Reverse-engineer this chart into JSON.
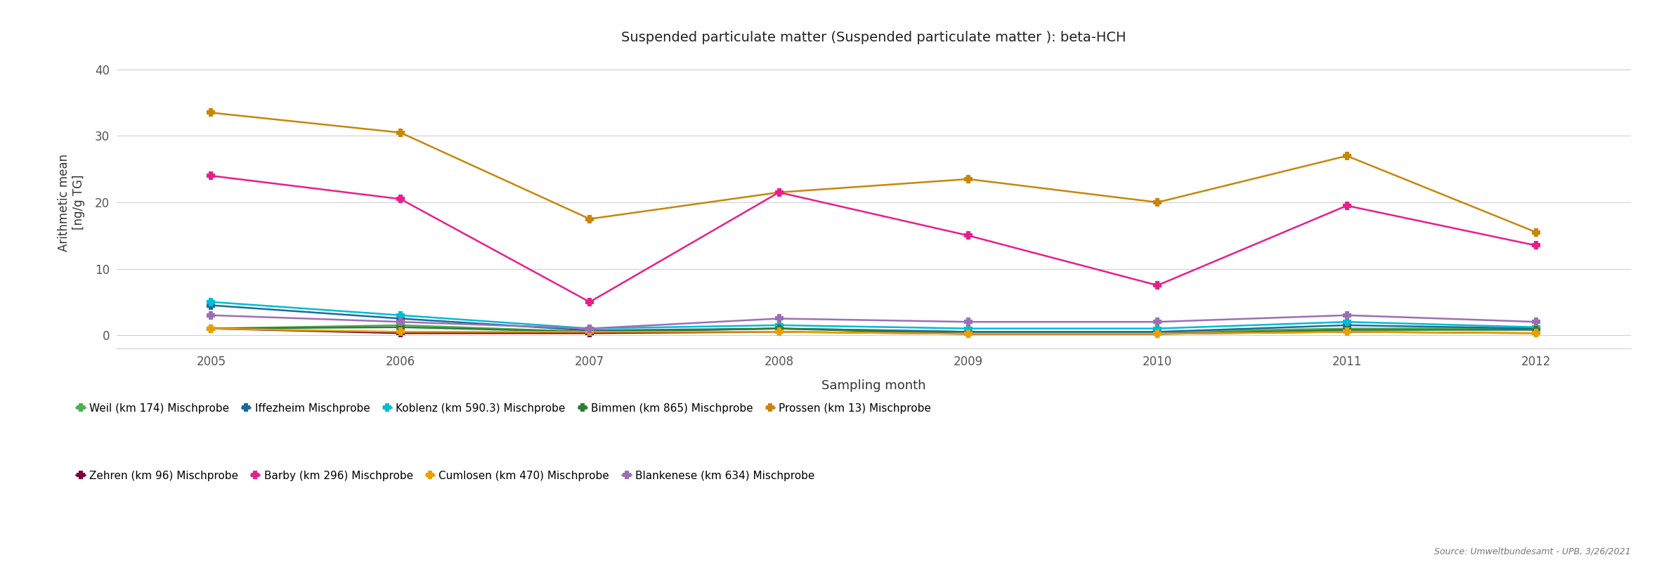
{
  "title": "Suspended particulate matter (Suspended particulate matter ): beta-HCH",
  "xlabel": "Sampling month",
  "ylabel": "Arithmetic mean\n[ng/g TG]",
  "years": [
    2005,
    2006,
    2007,
    2008,
    2009,
    2010,
    2011,
    2012
  ],
  "series": [
    {
      "label": "Weil (km 174) Mischprobe",
      "color": "#4caf50",
      "marker": "P",
      "markersize": 7,
      "data": [
        1.0,
        1.5,
        0.5,
        1.0,
        0.5,
        0.5,
        1.0,
        1.0
      ]
    },
    {
      "label": "Iffezheim Mischprobe",
      "color": "#1a6b9e",
      "marker": "P",
      "markersize": 7,
      "data": [
        4.5,
        2.5,
        0.7,
        1.0,
        0.5,
        0.5,
        1.5,
        1.0
      ]
    },
    {
      "label": "Koblenz (km 590.3) Mischprobe",
      "color": "#00bcd4",
      "marker": "P",
      "markersize": 7,
      "data": [
        5.0,
        3.0,
        1.0,
        1.5,
        1.0,
        1.0,
        2.0,
        1.2
      ]
    },
    {
      "label": "Bimmen (km 865) Mischprobe",
      "color": "#2e7d32",
      "marker": "P",
      "markersize": 7,
      "data": [
        1.0,
        1.2,
        0.5,
        1.0,
        0.2,
        0.2,
        0.8,
        0.8
      ]
    },
    {
      "label": "Prossen (km 13) Mischprobe",
      "color": "#c8860a",
      "marker": "P",
      "markersize": 7,
      "data": [
        33.5,
        30.5,
        17.5,
        21.5,
        23.5,
        20.0,
        27.0,
        15.5
      ]
    },
    {
      "label": "Zehren (km 96) Mischprobe",
      "color": "#880044",
      "marker": "P",
      "markersize": 7,
      "data": [
        1.0,
        0.3,
        0.3,
        0.5,
        0.2,
        0.2,
        0.5,
        0.3
      ]
    },
    {
      "label": "Barby (km 296) Mischprobe",
      "color": "#e91e8c",
      "marker": "P",
      "markersize": 7,
      "data": [
        24.0,
        20.5,
        5.0,
        21.5,
        15.0,
        7.5,
        19.5,
        13.5
      ]
    },
    {
      "label": "Cumlosen (km 470) Mischprobe",
      "color": "#c8860a",
      "marker": "P",
      "markersize": 7,
      "data": [
        1.0,
        0.5,
        0.5,
        0.5,
        0.2,
        0.2,
        0.5,
        0.3
      ]
    },
    {
      "label": "Blankenese (km 634) Mischprobe",
      "color": "#9c6fb5",
      "marker": "P",
      "markersize": 7,
      "data": [
        3.0,
        2.0,
        1.0,
        2.5,
        2.0,
        2.0,
        3.0,
        2.0
      ]
    }
  ],
  "ylim": [
    -2,
    42
  ],
  "yticks": [
    0,
    10,
    20,
    30,
    40
  ],
  "background_color": "#ffffff",
  "grid_color": "#d0d0d0",
  "source_text": "Source: Umweltbundesamt - UPB, 3/26/2021"
}
